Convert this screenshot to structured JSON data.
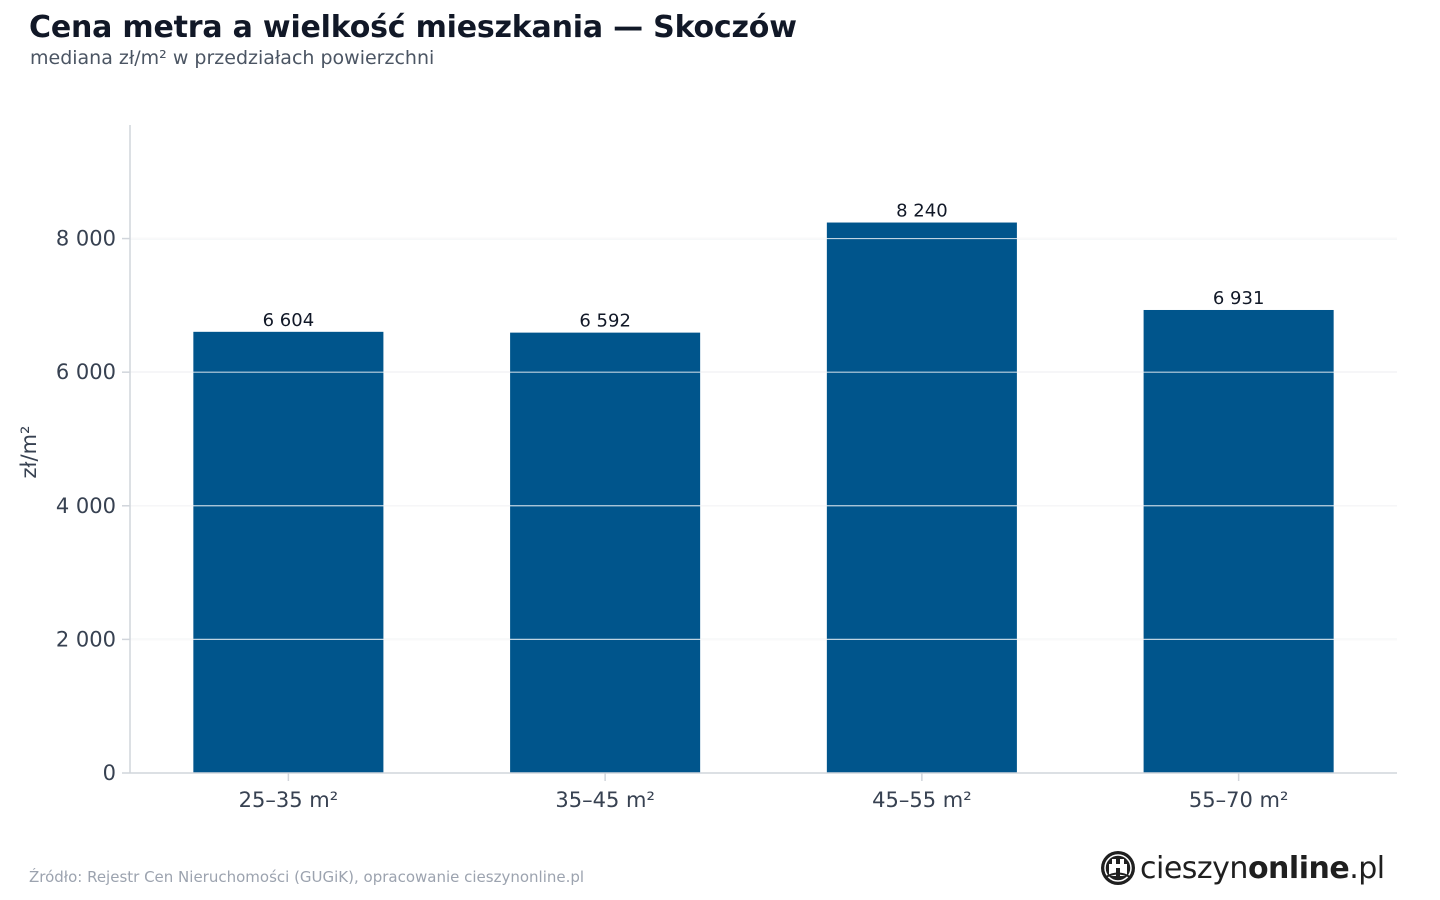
{
  "title": "Cena metra a wielkość mieszkania — Skoczów",
  "subtitle": "mediana zł/m² w przedziałach powierzchni",
  "source": "Źródło: Rejestr Cen Nieruchomości (GUGiK), opracowanie cieszynonline.pl",
  "logo": {
    "part1": "cieszyn",
    "part2": "online",
    "part3": ".pl"
  },
  "colors": {
    "bar": "#00558c",
    "grid": "#e5e7eb",
    "axis": "#d1d5db"
  },
  "chart_data": {
    "type": "bar",
    "title": "Cena metra a wielkość mieszkania — Skoczów",
    "subtitle": "mediana zł/m² w przedziałach powierzchni",
    "xlabel": "",
    "ylabel": "zł/m²",
    "categories": [
      "25–35 m²",
      "35–45 m²",
      "45–55 m²",
      "55–70 m²"
    ],
    "values": [
      6604,
      6592,
      8240,
      6931
    ],
    "value_labels": [
      "6 604",
      "6 592",
      "8 240",
      "6 931"
    ],
    "ylim": [
      0,
      9700
    ],
    "yticks": [
      0,
      2000,
      4000,
      6000,
      8000
    ],
    "ytick_labels": [
      "0",
      "2 000",
      "4 000",
      "6 000",
      "8 000"
    ],
    "grid": true,
    "legend": "none"
  }
}
